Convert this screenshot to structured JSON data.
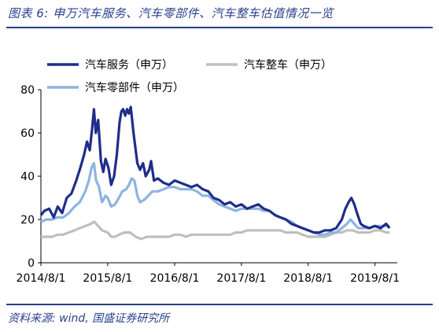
{
  "title": "图表 6:  申万汽车服务、汽车零部件、汽车整车估值情况一览",
  "source": "资料来源: wind, 国盛证券研究所",
  "chart_data": {
    "type": "line",
    "xlim": [
      "2014-08-01",
      "2019-12-01"
    ],
    "ylim": [
      0,
      80
    ],
    "yticks": [
      "0",
      "20",
      "40",
      "60",
      "80"
    ],
    "xticks": [
      {
        "label": "2014/8/1",
        "date": "2014-08-01"
      },
      {
        "label": "2015/8/1",
        "date": "2015-08-01"
      },
      {
        "label": "2016/8/1",
        "date": "2016-08-01"
      },
      {
        "label": "2017/8/1",
        "date": "2017-08-01"
      },
      {
        "label": "2018/8/1",
        "date": "2018-08-01"
      },
      {
        "label": "2019/8/1",
        "date": "2019-08-01"
      }
    ],
    "legend_placement": "top",
    "series": [
      {
        "name": "汽车服务（申万）",
        "color": "#1f2d8a",
        "points": [
          [
            "2014-08-01",
            22
          ],
          [
            "2014-08-20",
            24
          ],
          [
            "2014-09-15",
            25
          ],
          [
            "2014-10-10",
            21
          ],
          [
            "2014-11-01",
            26
          ],
          [
            "2014-11-25",
            23
          ],
          [
            "2014-12-20",
            30
          ],
          [
            "2015-01-15",
            32
          ],
          [
            "2015-02-10",
            38
          ],
          [
            "2015-03-05",
            44
          ],
          [
            "2015-03-25",
            50
          ],
          [
            "2015-04-10",
            56
          ],
          [
            "2015-04-25",
            52
          ],
          [
            "2015-05-08",
            62
          ],
          [
            "2015-05-18",
            71
          ],
          [
            "2015-05-28",
            60
          ],
          [
            "2015-06-10",
            66
          ],
          [
            "2015-06-25",
            47
          ],
          [
            "2015-07-08",
            42
          ],
          [
            "2015-07-20",
            48
          ],
          [
            "2015-08-05",
            44
          ],
          [
            "2015-08-20",
            36
          ],
          [
            "2015-09-05",
            40
          ],
          [
            "2015-09-20",
            50
          ],
          [
            "2015-10-05",
            65
          ],
          [
            "2015-10-15",
            70
          ],
          [
            "2015-10-25",
            71
          ],
          [
            "2015-11-05",
            68
          ],
          [
            "2015-11-15",
            71
          ],
          [
            "2015-11-25",
            69
          ],
          [
            "2015-12-05",
            72
          ],
          [
            "2015-12-20",
            60
          ],
          [
            "2016-01-10",
            46
          ],
          [
            "2016-01-25",
            43
          ],
          [
            "2016-02-10",
            46
          ],
          [
            "2016-02-25",
            40
          ],
          [
            "2016-03-15",
            43
          ],
          [
            "2016-03-25",
            47
          ],
          [
            "2016-04-10",
            38
          ],
          [
            "2016-05-01",
            39
          ],
          [
            "2016-06-01",
            37
          ],
          [
            "2016-07-01",
            36
          ],
          [
            "2016-08-01",
            38
          ],
          [
            "2016-09-01",
            37
          ],
          [
            "2016-10-01",
            36
          ],
          [
            "2016-11-01",
            35
          ],
          [
            "2016-12-01",
            36
          ],
          [
            "2017-01-01",
            34
          ],
          [
            "2017-02-01",
            33
          ],
          [
            "2017-03-01",
            30
          ],
          [
            "2017-04-01",
            29
          ],
          [
            "2017-05-01",
            27
          ],
          [
            "2017-06-01",
            28
          ],
          [
            "2017-07-01",
            26
          ],
          [
            "2017-08-01",
            27
          ],
          [
            "2017-09-01",
            25
          ],
          [
            "2017-10-01",
            26
          ],
          [
            "2017-11-01",
            27
          ],
          [
            "2017-12-01",
            25
          ],
          [
            "2018-01-01",
            24
          ],
          [
            "2018-02-01",
            22
          ],
          [
            "2018-03-01",
            21
          ],
          [
            "2018-04-01",
            20
          ],
          [
            "2018-05-01",
            18
          ],
          [
            "2018-06-01",
            17
          ],
          [
            "2018-07-01",
            16
          ],
          [
            "2018-08-01",
            15
          ],
          [
            "2018-09-01",
            14
          ],
          [
            "2018-10-01",
            14
          ],
          [
            "2018-11-01",
            15
          ],
          [
            "2018-12-01",
            15
          ],
          [
            "2019-01-01",
            16
          ],
          [
            "2019-02-01",
            20
          ],
          [
            "2019-02-20",
            25
          ],
          [
            "2019-03-10",
            28
          ],
          [
            "2019-03-25",
            30
          ],
          [
            "2019-04-10",
            27
          ],
          [
            "2019-04-25",
            23
          ],
          [
            "2019-05-15",
            18
          ],
          [
            "2019-06-01",
            17
          ],
          [
            "2019-07-01",
            16
          ],
          [
            "2019-08-01",
            17
          ],
          [
            "2019-09-01",
            16
          ],
          [
            "2019-10-01",
            18
          ],
          [
            "2019-10-20",
            16
          ]
        ]
      },
      {
        "name": "汽车整车（申万）",
        "color": "#bfbfbf",
        "points": [
          [
            "2014-08-01",
            12
          ],
          [
            "2014-09-01",
            12
          ],
          [
            "2014-10-01",
            12
          ],
          [
            "2014-11-01",
            13
          ],
          [
            "2014-12-01",
            13
          ],
          [
            "2015-01-01",
            14
          ],
          [
            "2015-02-01",
            15
          ],
          [
            "2015-03-01",
            16
          ],
          [
            "2015-04-01",
            17
          ],
          [
            "2015-05-01",
            18
          ],
          [
            "2015-05-20",
            19
          ],
          [
            "2015-06-10",
            17
          ],
          [
            "2015-07-01",
            15
          ],
          [
            "2015-08-01",
            14
          ],
          [
            "2015-08-20",
            12
          ],
          [
            "2015-09-10",
            12
          ],
          [
            "2015-10-01",
            13
          ],
          [
            "2015-11-01",
            14
          ],
          [
            "2015-12-01",
            14
          ],
          [
            "2016-01-01",
            12
          ],
          [
            "2016-02-01",
            11
          ],
          [
            "2016-03-01",
            12
          ],
          [
            "2016-04-01",
            12
          ],
          [
            "2016-05-01",
            12
          ],
          [
            "2016-06-01",
            12
          ],
          [
            "2016-07-01",
            12
          ],
          [
            "2016-08-01",
            13
          ],
          [
            "2016-09-01",
            13
          ],
          [
            "2016-10-01",
            12
          ],
          [
            "2016-11-01",
            13
          ],
          [
            "2016-12-01",
            13
          ],
          [
            "2017-01-01",
            13
          ],
          [
            "2017-02-01",
            13
          ],
          [
            "2017-03-01",
            13
          ],
          [
            "2017-04-01",
            13
          ],
          [
            "2017-05-01",
            13
          ],
          [
            "2017-06-01",
            13
          ],
          [
            "2017-07-01",
            14
          ],
          [
            "2017-08-01",
            14
          ],
          [
            "2017-09-01",
            15
          ],
          [
            "2017-10-01",
            15
          ],
          [
            "2017-11-01",
            15
          ],
          [
            "2017-12-01",
            15
          ],
          [
            "2018-01-01",
            15
          ],
          [
            "2018-02-01",
            15
          ],
          [
            "2018-03-01",
            15
          ],
          [
            "2018-04-01",
            14
          ],
          [
            "2018-05-01",
            14
          ],
          [
            "2018-06-01",
            14
          ],
          [
            "2018-07-01",
            13
          ],
          [
            "2018-08-01",
            12
          ],
          [
            "2018-09-01",
            12
          ],
          [
            "2018-10-01",
            12
          ],
          [
            "2018-11-01",
            12
          ],
          [
            "2018-12-01",
            13
          ],
          [
            "2019-01-01",
            14
          ],
          [
            "2019-02-01",
            14
          ],
          [
            "2019-03-01",
            15
          ],
          [
            "2019-04-01",
            15
          ],
          [
            "2019-05-01",
            14
          ],
          [
            "2019-06-01",
            14
          ],
          [
            "2019-07-01",
            14
          ],
          [
            "2019-08-01",
            15
          ],
          [
            "2019-09-01",
            15
          ],
          [
            "2019-10-01",
            14
          ],
          [
            "2019-10-20",
            14
          ]
        ]
      },
      {
        "name": "汽车零部件（申万）",
        "color": "#8db4e2",
        "points": [
          [
            "2014-08-01",
            19
          ],
          [
            "2014-09-01",
            20
          ],
          [
            "2014-10-01",
            20
          ],
          [
            "2014-11-01",
            21
          ],
          [
            "2014-12-01",
            21
          ],
          [
            "2015-01-01",
            23
          ],
          [
            "2015-02-01",
            26
          ],
          [
            "2015-03-01",
            28
          ],
          [
            "2015-04-01",
            33
          ],
          [
            "2015-04-20",
            38
          ],
          [
            "2015-05-05",
            44
          ],
          [
            "2015-05-18",
            46
          ],
          [
            "2015-05-30",
            38
          ],
          [
            "2015-06-15",
            35
          ],
          [
            "2015-07-01",
            28
          ],
          [
            "2015-07-20",
            31
          ],
          [
            "2015-08-01",
            30
          ],
          [
            "2015-08-20",
            26
          ],
          [
            "2015-09-10",
            27
          ],
          [
            "2015-10-01",
            30
          ],
          [
            "2015-10-20",
            33
          ],
          [
            "2015-11-10",
            34
          ],
          [
            "2015-11-25",
            36
          ],
          [
            "2015-12-10",
            39
          ],
          [
            "2015-12-25",
            38
          ],
          [
            "2016-01-10",
            31
          ],
          [
            "2016-01-25",
            28
          ],
          [
            "2016-02-15",
            29
          ],
          [
            "2016-03-10",
            31
          ],
          [
            "2016-04-01",
            33
          ],
          [
            "2016-05-01",
            33
          ],
          [
            "2016-06-01",
            34
          ],
          [
            "2016-07-01",
            35
          ],
          [
            "2016-08-01",
            35
          ],
          [
            "2016-09-01",
            34
          ],
          [
            "2016-10-01",
            34
          ],
          [
            "2016-11-01",
            34
          ],
          [
            "2016-12-01",
            33
          ],
          [
            "2017-01-01",
            31
          ],
          [
            "2017-02-01",
            31
          ],
          [
            "2017-03-01",
            29
          ],
          [
            "2017-04-01",
            27
          ],
          [
            "2017-05-01",
            26
          ],
          [
            "2017-06-01",
            25
          ],
          [
            "2017-07-01",
            24
          ],
          [
            "2017-08-01",
            25
          ],
          [
            "2017-09-01",
            25
          ],
          [
            "2017-10-01",
            25
          ],
          [
            "2017-11-01",
            25
          ],
          [
            "2017-12-01",
            24
          ],
          [
            "2018-01-01",
            24
          ],
          [
            "2018-02-01",
            22
          ],
          [
            "2018-03-01",
            21
          ],
          [
            "2018-04-01",
            20
          ],
          [
            "2018-05-01",
            19
          ],
          [
            "2018-06-01",
            17
          ],
          [
            "2018-07-01",
            16
          ],
          [
            "2018-08-01",
            15
          ],
          [
            "2018-09-01",
            14
          ],
          [
            "2018-10-01",
            13
          ],
          [
            "2018-11-01",
            13
          ],
          [
            "2018-12-01",
            14
          ],
          [
            "2019-01-01",
            14
          ],
          [
            "2019-02-01",
            16
          ],
          [
            "2019-03-01",
            18
          ],
          [
            "2019-03-20",
            20
          ],
          [
            "2019-04-10",
            18
          ],
          [
            "2019-05-01",
            16
          ],
          [
            "2019-06-01",
            16
          ],
          [
            "2019-07-01",
            16
          ],
          [
            "2019-08-01",
            17
          ],
          [
            "2019-09-01",
            17
          ],
          [
            "2019-10-01",
            17
          ],
          [
            "2019-10-20",
            17
          ]
        ]
      }
    ]
  }
}
